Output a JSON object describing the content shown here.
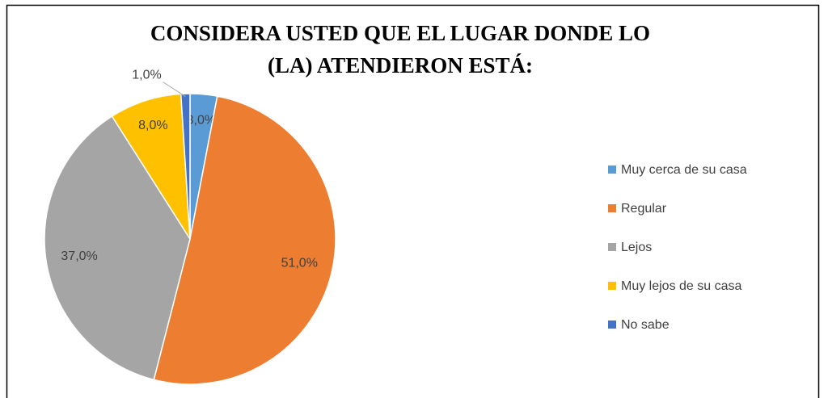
{
  "chart_data": {
    "type": "pie",
    "title": [
      "CONSIDERA USTED QUE EL LUGAR DONDE LO",
      "(LA) ATENDIERON ESTÁ:"
    ],
    "categories": [
      "Muy cerca de su casa",
      "Regular",
      "Lejos",
      "Muy lejos de su casa",
      "No sabe"
    ],
    "values": [
      3,
      51,
      37,
      8,
      1
    ],
    "value_labels": [
      "3,0%",
      "51,0%",
      "37,0%",
      "8,0%",
      "1,0%"
    ],
    "colors": [
      "#5b9bd5",
      "#ed7d31",
      "#a5a5a5",
      "#ffc000",
      "#4472c4"
    ],
    "legend": "right"
  }
}
